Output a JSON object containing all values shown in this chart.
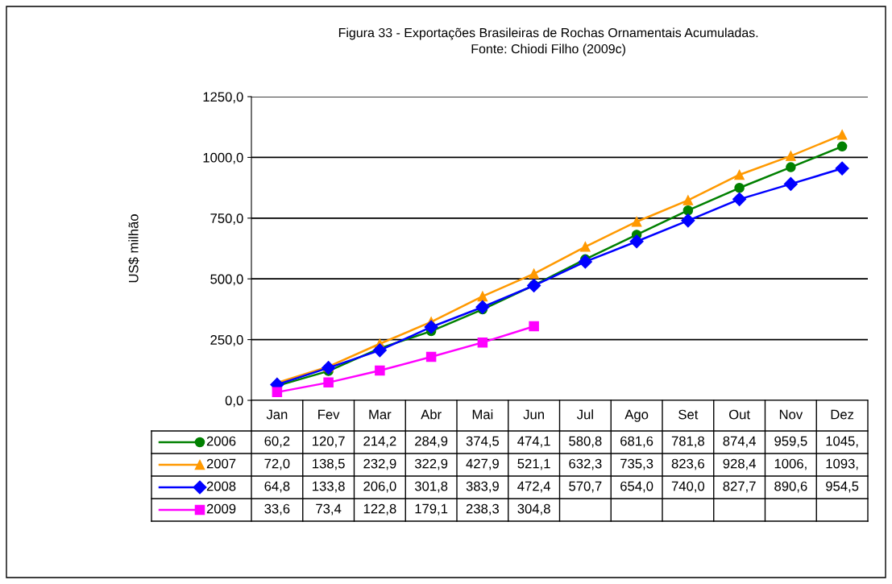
{
  "chart_data": {
    "type": "line",
    "title": "Figura 33 - Exportações Brasileiras de Rochas Ornamentais Acumuladas.",
    "subtitle": "Fonte: Chiodi Filho (2009c)",
    "ylabel": "US$ milhão",
    "categories": [
      "Jan",
      "Fev",
      "Mar",
      "Abr",
      "Mai",
      "Jun",
      "Jul",
      "Ago",
      "Set",
      "Out",
      "Nov",
      "Dez"
    ],
    "series": [
      {
        "name": "2006",
        "color": "#008000",
        "marker": "circle",
        "values": [
          60.2,
          120.7,
          214.2,
          284.9,
          374.5,
          474.1,
          580.8,
          681.6,
          781.8,
          874.4,
          959.5,
          1045
        ],
        "value_labels": [
          "60,2",
          "120,7",
          "214,2",
          "284,9",
          "374,5",
          "474,1",
          "580,8",
          "681,6",
          "781,8",
          "874,4",
          "959,5",
          "1045,"
        ]
      },
      {
        "name": "2007",
        "color": "#ff9900",
        "marker": "triangle",
        "values": [
          72.0,
          138.5,
          232.9,
          322.9,
          427.9,
          521.1,
          632.3,
          735.3,
          823.6,
          928.4,
          1006,
          1093
        ],
        "value_labels": [
          "72,0",
          "138,5",
          "232,9",
          "322,9",
          "427,9",
          "521,1",
          "632,3",
          "735,3",
          "823,6",
          "928,4",
          "1006,",
          "1093,"
        ]
      },
      {
        "name": "2008",
        "color": "#0000ff",
        "marker": "diamond",
        "values": [
          64.8,
          133.8,
          206.0,
          301.8,
          383.9,
          472.4,
          570.7,
          654.0,
          740.0,
          827.7,
          890.6,
          954.5
        ],
        "value_labels": [
          "64,8",
          "133,8",
          "206,0",
          "301,8",
          "383,9",
          "472,4",
          "570,7",
          "654,0",
          "740,0",
          "827,7",
          "890,6",
          "954,5"
        ]
      },
      {
        "name": "2009",
        "color": "#ff00ff",
        "marker": "square",
        "values": [
          33.6,
          73.4,
          122.8,
          179.1,
          238.3,
          304.8,
          null,
          null,
          null,
          null,
          null,
          null
        ],
        "value_labels": [
          "33,6",
          "73,4",
          "122,8",
          "179,1",
          "238,3",
          "304,8",
          null,
          null,
          null,
          null,
          null,
          null
        ]
      }
    ],
    "ylim": [
      0,
      1250
    ],
    "yticks": [
      {
        "value": 0,
        "label": "0,0"
      },
      {
        "value": 250,
        "label": "250,0"
      },
      {
        "value": 500,
        "label": "500,0"
      },
      {
        "value": 750,
        "label": "750,0"
      },
      {
        "value": 1000,
        "label": "1000,0"
      },
      {
        "value": 1250,
        "label": "1250,0"
      }
    ],
    "grid": "y",
    "legend": "bottom",
    "line_style": "solid"
  }
}
